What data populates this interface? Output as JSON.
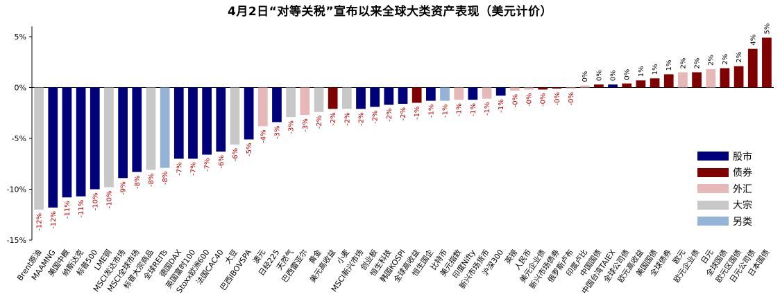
{
  "chart_data": {
    "type": "bar",
    "title": "4月2日“对等关税”宣布以来全球大类资产表现（美元计价）",
    "ylim": [
      -15,
      6
    ],
    "yticks": [
      5,
      0,
      -5,
      -10,
      -15
    ],
    "ytick_labels": [
      "5%",
      "0%",
      "-5%",
      "-10%",
      "-15%"
    ],
    "grid": false,
    "legend_position": "right",
    "colors": {
      "股市": "#00007a",
      "债券": "#7f0000",
      "外汇": "#e6b9b8",
      "大宗": "#c8c8c8",
      "另类": "#95b3d7"
    },
    "legend": [
      "股市",
      "债券",
      "外汇",
      "大宗",
      "另类"
    ],
    "categories": [
      "Brent原油",
      "MAAMNG",
      "美国中概",
      "纳斯达克",
      "标普500",
      "LME铜",
      "MSCI发达市场",
      "MSCI全球市场",
      "标普大宗商品",
      "全球REITs",
      "德国DAX",
      "英国富时100",
      "Stoxx欧洲600",
      "法国CAC40",
      "大豆",
      "巴西IBOVSPA",
      "澳元",
      "日经225",
      "天然气",
      "巴西雷亚尔",
      "黄金",
      "美元高收益",
      "小麦",
      "MSCI新兴市场",
      "创业板",
      "恒生科技",
      "韩国KOSPI",
      "全球高收益",
      "恒生国企",
      "比特币",
      "美元指数",
      "印度Nifty",
      "新兴市场货币",
      "沪深300",
      "英镑",
      "人民币",
      "美元企业债",
      "新兴市场债券",
      "俄罗斯卢布",
      "印度卢比",
      "中国国债",
      "中国台湾TAIEX",
      "全球公司债",
      "欧元高收益",
      "美国国债",
      "全球债券",
      "欧元",
      "欧元企业债",
      "日元",
      "全球国债",
      "欧元区国债",
      "日元公司债",
      "日本国债"
    ],
    "classes": [
      "大宗",
      "股市",
      "股市",
      "股市",
      "股市",
      "大宗",
      "股市",
      "股市",
      "大宗",
      "另类",
      "股市",
      "股市",
      "股市",
      "股市",
      "大宗",
      "股市",
      "外汇",
      "股市",
      "大宗",
      "外汇",
      "大宗",
      "债券",
      "大宗",
      "股市",
      "股市",
      "股市",
      "股市",
      "债券",
      "股市",
      "另类",
      "外汇",
      "股市",
      "外汇",
      "股市",
      "外汇",
      "外汇",
      "债券",
      "债券",
      "外汇",
      "外汇",
      "债券",
      "股市",
      "债券",
      "债券",
      "债券",
      "债券",
      "外汇",
      "债券",
      "外汇",
      "债券",
      "债券",
      "债券",
      "债券"
    ],
    "values": [
      -12.0,
      -11.8,
      -10.8,
      -10.7,
      -10.0,
      -9.8,
      -8.9,
      -8.3,
      -8.1,
      -7.9,
      -7.0,
      -7.0,
      -6.6,
      -6.3,
      -5.6,
      -5.1,
      -3.8,
      -3.4,
      -2.9,
      -2.7,
      -2.4,
      -2.1,
      -2.1,
      -2.1,
      -1.9,
      -1.7,
      -1.6,
      -1.5,
      -1.3,
      -1.3,
      -1.2,
      -1.2,
      -1.1,
      -0.8,
      -0.3,
      -0.2,
      -0.2,
      -0.1,
      -0.1,
      0.2,
      0.3,
      0.3,
      0.4,
      0.7,
      0.9,
      1.3,
      1.5,
      1.5,
      1.8,
      1.9,
      2.1,
      3.8,
      4.9
    ],
    "data_labels": [
      "-12%",
      "-12%",
      "-11%",
      "-11%",
      "-10%",
      "-10%",
      "-9%",
      "-8%",
      "-8%",
      "-8%",
      "-7%",
      "-7%",
      "-7%",
      "-6%",
      "-6%",
      "-5%",
      "-4%",
      "-3%",
      "-3%",
      "-3%",
      "-2%",
      "-2%",
      "-2%",
      "-2%",
      "-2%",
      "-2%",
      "-2%",
      "-1%",
      "-1%",
      "-1%",
      "-1%",
      "-1%",
      "-1%",
      "-1%",
      "-0%",
      "-0%",
      "-0%",
      "-0%",
      "-0%",
      "0%",
      "0%",
      "0%",
      "0%",
      "1%",
      "1%",
      "1%",
      "2%",
      "2%",
      "2%",
      "2%",
      "2%",
      "4%",
      "5%"
    ]
  }
}
